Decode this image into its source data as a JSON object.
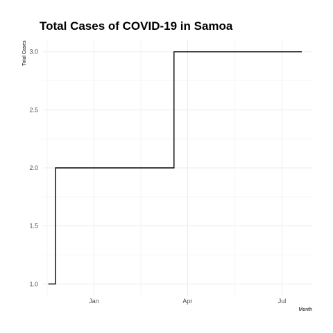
{
  "chart_data": {
    "type": "line",
    "title": "Total Cases of COVID-19 in Samoa",
    "xlabel": "Month",
    "ylabel": "Total Cases",
    "line_shape": "step",
    "x": [
      "2020-11-18",
      "2020-11-25",
      "2021-03-19",
      "2021-07-20"
    ],
    "series": [
      {
        "values": [
          1,
          2,
          3,
          3
        ]
      }
    ],
    "x_ticks": [
      {
        "date": "2021-01-01",
        "label": "Jan"
      },
      {
        "date": "2021-04-01",
        "label": "Apr"
      },
      {
        "date": "2021-07-01",
        "label": "Jul"
      }
    ],
    "y_ticks": [
      1.0,
      1.5,
      2.0,
      2.5,
      3.0
    ],
    "y_tick_labels": [
      "1.0",
      "1.5",
      "2.0",
      "2.5",
      "3.0"
    ],
    "xlim": [
      "2020-11-13",
      "2021-07-30"
    ],
    "ylim": [
      0.9,
      3.1
    ],
    "grid": true,
    "legend": "none",
    "line_color": "#000000"
  }
}
